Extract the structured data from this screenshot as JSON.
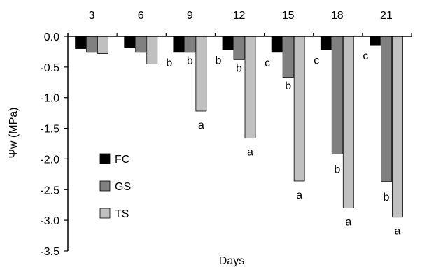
{
  "chart_data": {
    "type": "bar",
    "title": "",
    "xlabel": "Days",
    "ylabel": "Ψw (MPa)",
    "categories": [
      "3",
      "6",
      "9",
      "12",
      "15",
      "18",
      "21"
    ],
    "ylim": [
      -3.5,
      0.0
    ],
    "yticks": [
      "0.0",
      "-0.5",
      "-1.0",
      "-1.5",
      "-2.0",
      "-2.5",
      "-3.0",
      "-3.5"
    ],
    "ytick_values": [
      0.0,
      -0.5,
      -1.0,
      -1.5,
      -2.0,
      -2.5,
      -3.0,
      -3.5
    ],
    "x_axis_position": "top",
    "grid": false,
    "legend_position": "lower-left",
    "series": [
      {
        "name": "FC",
        "color": "#000000",
        "values": [
          -0.2,
          -0.18,
          -0.26,
          -0.22,
          -0.26,
          -0.22,
          -0.15
        ],
        "labels": [
          "",
          "",
          "b",
          "b",
          "c",
          "c",
          "c"
        ]
      },
      {
        "name": "GS",
        "color": "#808080",
        "values": [
          -0.26,
          -0.26,
          -0.26,
          -0.38,
          -0.67,
          -1.92,
          -2.37
        ],
        "labels": [
          "",
          "",
          "b",
          "b",
          "b",
          "b",
          "b"
        ]
      },
      {
        "name": "TS",
        "color": "#c0c0c0",
        "values": [
          -0.28,
          -0.45,
          -1.22,
          -1.66,
          -2.36,
          -2.8,
          -2.95
        ],
        "labels": [
          "",
          "",
          "a",
          "a",
          "a",
          "a",
          "a"
        ]
      }
    ]
  }
}
